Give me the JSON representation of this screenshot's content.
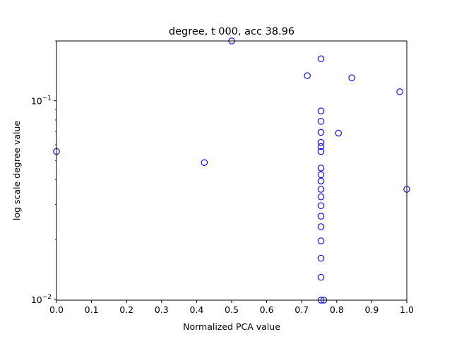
{
  "chart_data": {
    "type": "scatter",
    "title": "degree, t 000, acc 38.96",
    "xlabel": "Normalized PCA value",
    "ylabel": "log scale degree value",
    "xscale": "linear",
    "yscale": "log",
    "xlim": [
      0.0,
      1.0
    ],
    "ylim": [
      0.0099,
      0.2
    ],
    "xticks": [
      0.0,
      0.1,
      0.2,
      0.3,
      0.4,
      0.5,
      0.6,
      0.7,
      0.8,
      0.9,
      1.0
    ],
    "xtick_labels": [
      "0.0",
      "0.1",
      "0.2",
      "0.3",
      "0.4",
      "0.5",
      "0.6",
      "0.7",
      "0.8",
      "0.9",
      "1.0"
    ],
    "yticks": [
      0.01,
      0.1
    ],
    "ytick_labels": [
      {
        "base": "10",
        "exp": "−2"
      },
      {
        "base": "10",
        "exp": "−1"
      }
    ],
    "grid": false,
    "legend": "none",
    "marker": "open-circle",
    "marker_color": "#0000ff",
    "points": [
      {
        "x": 0.0,
        "y": 0.0555
      },
      {
        "x": 0.422,
        "y": 0.0488
      },
      {
        "x": 0.5,
        "y": 0.2
      },
      {
        "x": 0.716,
        "y": 0.1337
      },
      {
        "x": 0.755,
        "y": 0.1626
      },
      {
        "x": 0.843,
        "y": 0.1305
      },
      {
        "x": 0.98,
        "y": 0.111
      },
      {
        "x": 0.805,
        "y": 0.0687
      },
      {
        "x": 1.0,
        "y": 0.0358
      },
      {
        "x": 0.755,
        "y": 0.0888
      },
      {
        "x": 0.755,
        "y": 0.0787
      },
      {
        "x": 0.755,
        "y": 0.0693
      },
      {
        "x": 0.755,
        "y": 0.0617
      },
      {
        "x": 0.755,
        "y": 0.0588
      },
      {
        "x": 0.755,
        "y": 0.0555
      },
      {
        "x": 0.755,
        "y": 0.0458
      },
      {
        "x": 0.755,
        "y": 0.0424
      },
      {
        "x": 0.755,
        "y": 0.0394
      },
      {
        "x": 0.755,
        "y": 0.0358
      },
      {
        "x": 0.755,
        "y": 0.0328
      },
      {
        "x": 0.755,
        "y": 0.0296
      },
      {
        "x": 0.755,
        "y": 0.0262
      },
      {
        "x": 0.755,
        "y": 0.0232
      },
      {
        "x": 0.755,
        "y": 0.0197
      },
      {
        "x": 0.755,
        "y": 0.0161
      },
      {
        "x": 0.755,
        "y": 0.0129
      },
      {
        "x": 0.755,
        "y": 0.0099
      },
      {
        "x": 0.763,
        "y": 0.0099
      }
    ]
  }
}
